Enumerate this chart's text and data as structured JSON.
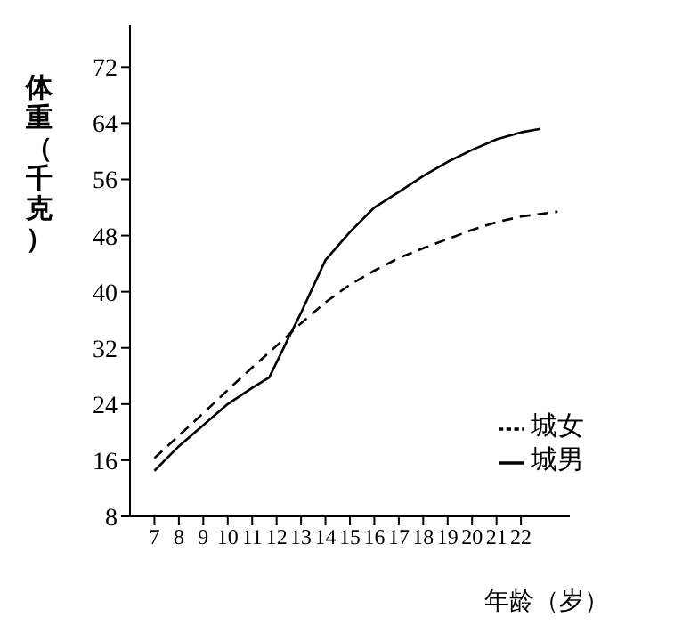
{
  "chart_data": {
    "type": "line",
    "xlabel": "年龄（岁）",
    "ylabel": "体重（千克）",
    "xlim": [
      6,
      24
    ],
    "xticks": [
      7,
      8,
      9,
      10,
      11,
      12,
      13,
      14,
      15,
      16,
      17,
      18,
      19,
      20,
      21,
      22
    ],
    "ylim": [
      8,
      78
    ],
    "yticks": [
      8,
      16,
      24,
      32,
      40,
      48,
      56,
      64,
      72
    ],
    "legend": "bottom right",
    "marker": "none",
    "series": [
      {
        "name": "城男",
        "color": "#000000",
        "line_style": "solid",
        "x": [
          7,
          8,
          9,
          10,
          11,
          11.7,
          12.5,
          13,
          14,
          15,
          16,
          17,
          18,
          19,
          20,
          21,
          22,
          22.8
        ],
        "values": [
          14.5,
          18,
          21,
          24,
          26.3,
          27.8,
          33.5,
          37,
          44.5,
          48.5,
          52,
          54.2,
          56.5,
          58.5,
          60.2,
          61.7,
          62.7,
          63.2
        ]
      },
      {
        "name": "城女",
        "color": "#000000",
        "line_style": "dashed",
        "x": [
          7,
          8,
          9,
          10,
          11,
          12,
          13,
          14,
          15,
          16,
          17,
          18,
          19,
          20,
          21,
          22,
          23.5
        ],
        "values": [
          16.3,
          19.5,
          22.7,
          26,
          29.2,
          32.3,
          35.5,
          38.5,
          41,
          43,
          44.8,
          46.2,
          47.5,
          48.8,
          49.9,
          50.7,
          51.4
        ]
      }
    ]
  }
}
